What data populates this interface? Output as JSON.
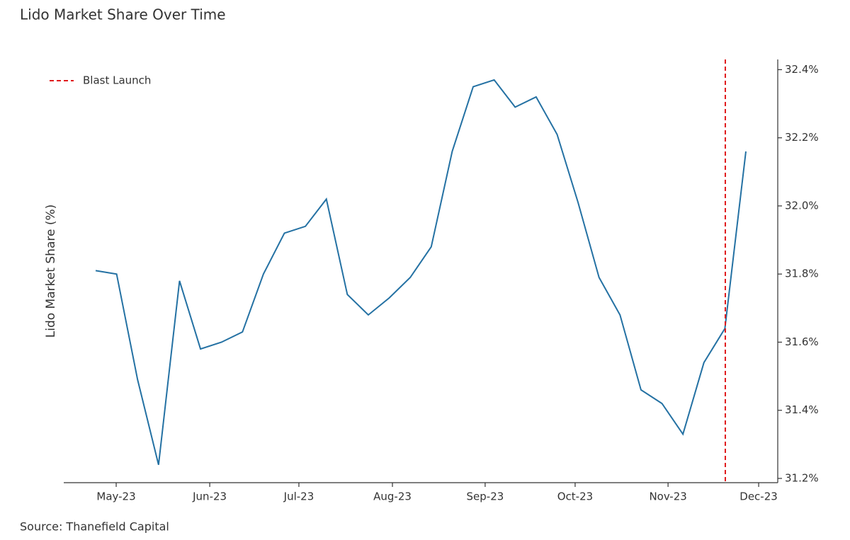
{
  "chart_data": {
    "type": "line",
    "title": "Lido Market Share Over Time",
    "ylabel": "Lido Market Share (%)",
    "source": "Source: Thanefield Capital",
    "values": [
      31.81,
      31.8,
      31.49,
      31.24,
      31.78,
      31.58,
      31.6,
      31.63,
      31.8,
      31.92,
      31.94,
      32.02,
      31.74,
      31.68,
      31.73,
      31.79,
      31.88,
      32.16,
      32.35,
      32.37,
      32.29,
      32.32,
      32.21,
      32.01,
      31.79,
      31.68,
      31.46,
      31.42,
      31.33,
      31.54,
      31.64,
      32.16
    ],
    "color": "#2471a3",
    "xlim": [
      -1.52,
      32.52
    ],
    "xticks": [
      {
        "value": 0.98,
        "label": "May-23"
      },
      {
        "value": 5.44,
        "label": "Jun-23"
      },
      {
        "value": 9.69,
        "label": "Jul-23"
      },
      {
        "value": 14.15,
        "label": "Aug-23"
      },
      {
        "value": 18.57,
        "label": "Sep-23"
      },
      {
        "value": 22.86,
        "label": "Oct-23"
      },
      {
        "value": 27.29,
        "label": "Nov-23"
      },
      {
        "value": 31.61,
        "label": "Dec-23"
      }
    ],
    "ylim": [
      31.1875,
      32.43
    ],
    "yticks": [
      {
        "value": 31.2,
        "label": "31.2%"
      },
      {
        "value": 31.4,
        "label": "31.4%"
      },
      {
        "value": 31.6,
        "label": "31.6%"
      },
      {
        "value": 31.8,
        "label": "31.8%"
      },
      {
        "value": 32.0,
        "label": "32.0%"
      },
      {
        "value": 32.2,
        "label": "32.2%"
      },
      {
        "value": 32.4,
        "label": "32.4%"
      }
    ],
    "yaxis_side": "right",
    "vlines": [
      {
        "x": 30.02,
        "label": "Blast Launch",
        "color": "#e0191b"
      }
    ],
    "legend": "upper left"
  }
}
